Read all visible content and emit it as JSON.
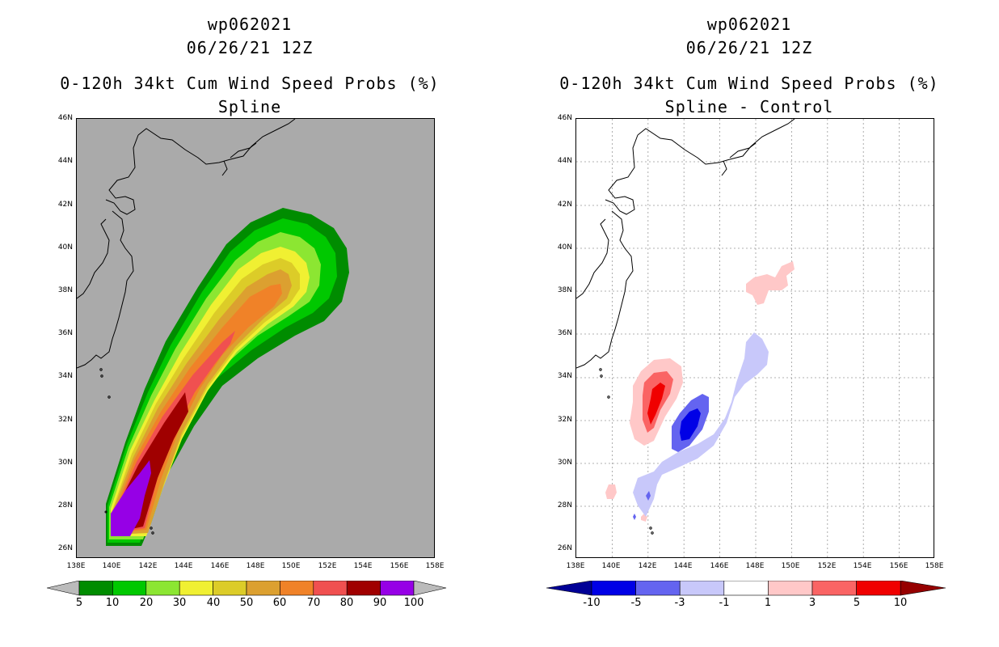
{
  "left_panel": {
    "title_id": "wp062021",
    "title_date": "06/26/21 12Z",
    "title_product": "0-120h 34kt Cum Wind Speed Probs (%)",
    "title_method": "Spline",
    "colorbar": {
      "labels": [
        "5",
        "10",
        "20",
        "30",
        "40",
        "50",
        "60",
        "70",
        "80",
        "90",
        "100"
      ],
      "colors": [
        "#008c00",
        "#00c800",
        "#8ce632",
        "#f0f032",
        "#dccc28",
        "#dca030",
        "#f08228",
        "#f05050",
        "#a00000",
        "#9600e6"
      ],
      "end_color": "#bbbbbb"
    }
  },
  "right_panel": {
    "title_id": "wp062021",
    "title_date": "06/26/21 12Z",
    "title_product": "0-120h 34kt Cum Wind Speed Probs (%)",
    "title_method": "Spline - Control",
    "colorbar": {
      "labels": [
        "-10",
        "-5",
        "-3",
        "-1",
        "1",
        "3",
        "5",
        "10"
      ],
      "colors": [
        "#0000e6",
        "#6464f0",
        "#c8c8fa",
        "#ffffff",
        "#ffc8c8",
        "#fa6464",
        "#f00000"
      ],
      "low_color": "#000096",
      "high_color": "#960000"
    }
  },
  "axes": {
    "lat_labels": [
      "46N",
      "44N",
      "42N",
      "40N",
      "38N",
      "36N",
      "34N",
      "32N",
      "30N",
      "28N",
      "26N"
    ],
    "lon_labels": [
      "138E",
      "140E",
      "142E",
      "144E",
      "146E",
      "148E",
      "150E",
      "152E",
      "154E",
      "156E",
      "158E"
    ]
  },
  "colors": {
    "map_background_left": "#aaaaaa",
    "map_background_right": "#ffffff",
    "gridline": "#999999"
  }
}
